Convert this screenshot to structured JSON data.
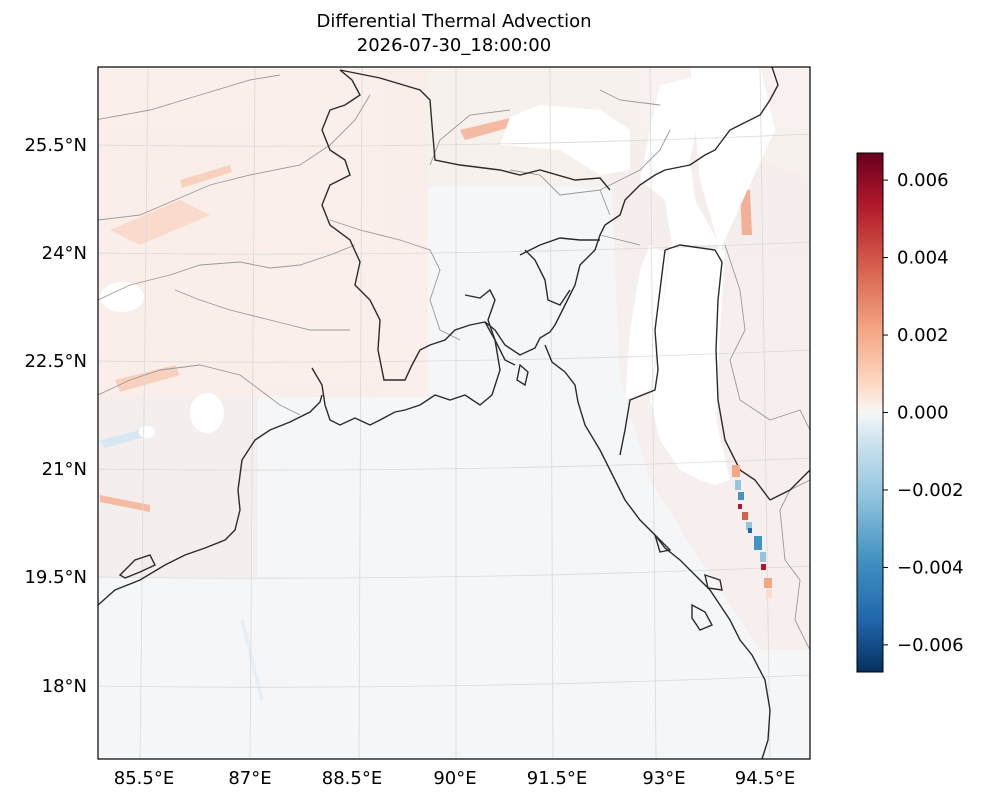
{
  "title": "Differential Thermal Advection",
  "subtitle": "2026-07-30_18:00:00",
  "lat_ticks": [
    "25.5°N",
    "24°N",
    "22.5°N",
    "21°N",
    "19.5°N",
    "18°N"
  ],
  "lon_ticks": [
    "85.5°E",
    "87°E",
    "88.5°E",
    "90°E",
    "91.5°E",
    "93°E",
    "94.5°E"
  ],
  "colorbar": {
    "colormap": "RdBu_r",
    "min": -0.0067,
    "max": 0.0067,
    "tick_values": [
      0.006,
      0.004,
      0.002,
      0.0,
      -0.002,
      -0.004,
      -0.006
    ],
    "tick_labels": [
      "0.006",
      "0.004",
      "0.002",
      "0.000",
      "−0.002",
      "−0.004",
      "−0.006"
    ]
  },
  "colors": {
    "ocean_fill": "#f4f6f7",
    "coastline": "#2b2b2b",
    "admin_border": "#999999",
    "gridline": "#d9d9d9"
  }
}
